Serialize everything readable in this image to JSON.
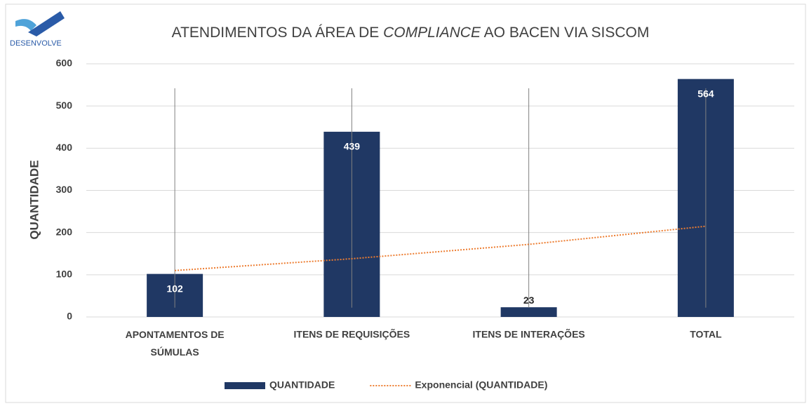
{
  "logo": "DESENVOLVE",
  "chart_data": {
    "type": "bar",
    "title": [
      "ATENDIMENTOS DA ÁREA DE",
      "COMPLIANCE",
      "AO BACEN VIA SISCOM"
    ],
    "y_label": "QUANTIDADE",
    "categories": [
      "APONTAMENTOS DE SÚMULAS",
      "ITENS DE REQUISIÇÕES",
      "ITENS DE INTERAÇÕES",
      "TOTAL"
    ],
    "series": [
      {
        "name": "QUANTIDADE",
        "color": "#203864",
        "values": [
          102,
          439,
          23,
          564
        ]
      },
      {
        "name": "Exponencial (QUANTIDADE)",
        "color": "#ed7d31",
        "type": "trend",
        "values": [
          110,
          138,
          172,
          215
        ]
      }
    ],
    "error_bars": {
      "low": [
        22,
        22,
        22,
        22
      ],
      "high": [
        542,
        542,
        542,
        542
      ]
    },
    "ylim": [
      0,
      600
    ],
    "yticks": [
      0,
      100,
      200,
      300,
      400,
      500,
      600
    ],
    "grid": true,
    "legend": "bottom"
  }
}
